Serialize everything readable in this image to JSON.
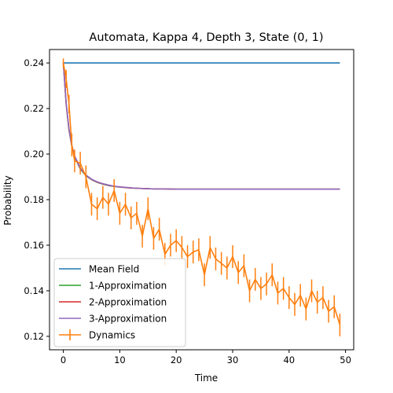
{
  "chart_data": {
    "type": "line",
    "title": "Automata, Kappa 4, Depth 3, State (0, 1)",
    "xlabel": "Time",
    "ylabel": "Probability",
    "xlim": [
      -2.45,
      51.45
    ],
    "ylim": [
      0.1141,
      0.2459
    ],
    "xticks": [
      0,
      10,
      20,
      30,
      40,
      50
    ],
    "yticks": [
      0.12,
      0.14,
      0.16,
      0.18,
      0.2,
      0.22,
      0.24
    ],
    "ytick_labels": [
      "0.12",
      "0.14",
      "0.16",
      "0.18",
      "0.20",
      "0.22",
      "0.24"
    ],
    "legend_position": "lower-left",
    "grid": false,
    "series": [
      {
        "name": "Mean Field",
        "color": "#1f77b4",
        "x": [
          0,
          49
        ],
        "y": [
          0.24,
          0.24
        ]
      },
      {
        "name": "1-Approximation",
        "color": "#2ca02c",
        "x": [
          0,
          0.5,
          1,
          1.5,
          2,
          3,
          4,
          5,
          6,
          7,
          8,
          9,
          10,
          11,
          12,
          13,
          14,
          15,
          16,
          18,
          20,
          49
        ],
        "y": [
          0.24,
          0.222,
          0.2105,
          0.2035,
          0.1988,
          0.1935,
          0.1905,
          0.1888,
          0.1876,
          0.1868,
          0.1862,
          0.1858,
          0.1855,
          0.1853,
          0.1851,
          0.185,
          0.1849,
          0.1848,
          0.1847,
          0.1847,
          0.1846,
          0.1846
        ]
      },
      {
        "name": "2-Approximation",
        "color": "#d62728",
        "x": [
          0,
          0.5,
          1,
          1.5,
          2,
          3,
          4,
          5,
          6,
          7,
          8,
          9,
          10,
          11,
          12,
          13,
          14,
          15,
          16,
          18,
          20,
          49
        ],
        "y": [
          0.24,
          0.2223,
          0.2108,
          0.2037,
          0.199,
          0.1937,
          0.1907,
          0.1889,
          0.1877,
          0.1869,
          0.1863,
          0.1859,
          0.1856,
          0.1853,
          0.1851,
          0.185,
          0.1849,
          0.1848,
          0.1847,
          0.1847,
          0.1846,
          0.1846
        ]
      },
      {
        "name": "3-Approximation",
        "color": "#9467bd",
        "x": [
          0,
          0.5,
          1,
          1.5,
          2,
          3,
          4,
          5,
          6,
          7,
          8,
          9,
          10,
          11,
          12,
          13,
          14,
          15,
          16,
          18,
          20,
          49
        ],
        "y": [
          0.24,
          0.2225,
          0.211,
          0.2039,
          0.1992,
          0.1939,
          0.1908,
          0.189,
          0.1878,
          0.187,
          0.1864,
          0.1859,
          0.1856,
          0.1854,
          0.1852,
          0.185,
          0.1849,
          0.1848,
          0.1847,
          0.1847,
          0.1846,
          0.1846
        ]
      },
      {
        "name": "Dynamics",
        "color": "#ff7f0e",
        "errorbars": true,
        "x": [
          0,
          0.5,
          1,
          1.5,
          2,
          3,
          4,
          5,
          6,
          7,
          8,
          9,
          10,
          11,
          12,
          13,
          14,
          15,
          16,
          17,
          18,
          19,
          20,
          21,
          22,
          23,
          24,
          25,
          26,
          27,
          28,
          29,
          30,
          31,
          32,
          33,
          34,
          35,
          36,
          37,
          38,
          39,
          40,
          41,
          42,
          43,
          44,
          45,
          46,
          47,
          48,
          49
        ],
        "y": [
          0.24,
          0.233,
          0.222,
          0.204,
          0.197,
          0.196,
          0.19,
          0.178,
          0.176,
          0.181,
          0.178,
          0.184,
          0.174,
          0.178,
          0.172,
          0.174,
          0.164,
          0.176,
          0.163,
          0.167,
          0.156,
          0.16,
          0.162,
          0.159,
          0.155,
          0.157,
          0.158,
          0.147,
          0.159,
          0.154,
          0.152,
          0.15,
          0.155,
          0.148,
          0.151,
          0.14,
          0.145,
          0.141,
          0.143,
          0.147,
          0.139,
          0.141,
          0.137,
          0.134,
          0.138,
          0.132,
          0.14,
          0.135,
          0.137,
          0.131,
          0.133,
          0.125
        ],
        "err": [
          0.002,
          0.004,
          0.004,
          0.005,
          0.005,
          0.005,
          0.005,
          0.005,
          0.005,
          0.005,
          0.005,
          0.005,
          0.005,
          0.005,
          0.005,
          0.005,
          0.005,
          0.005,
          0.005,
          0.005,
          0.005,
          0.005,
          0.005,
          0.005,
          0.005,
          0.005,
          0.005,
          0.005,
          0.005,
          0.005,
          0.005,
          0.005,
          0.005,
          0.005,
          0.005,
          0.005,
          0.005,
          0.005,
          0.005,
          0.005,
          0.005,
          0.005,
          0.005,
          0.005,
          0.005,
          0.005,
          0.005,
          0.005,
          0.005,
          0.005,
          0.005,
          0.005
        ]
      }
    ]
  }
}
